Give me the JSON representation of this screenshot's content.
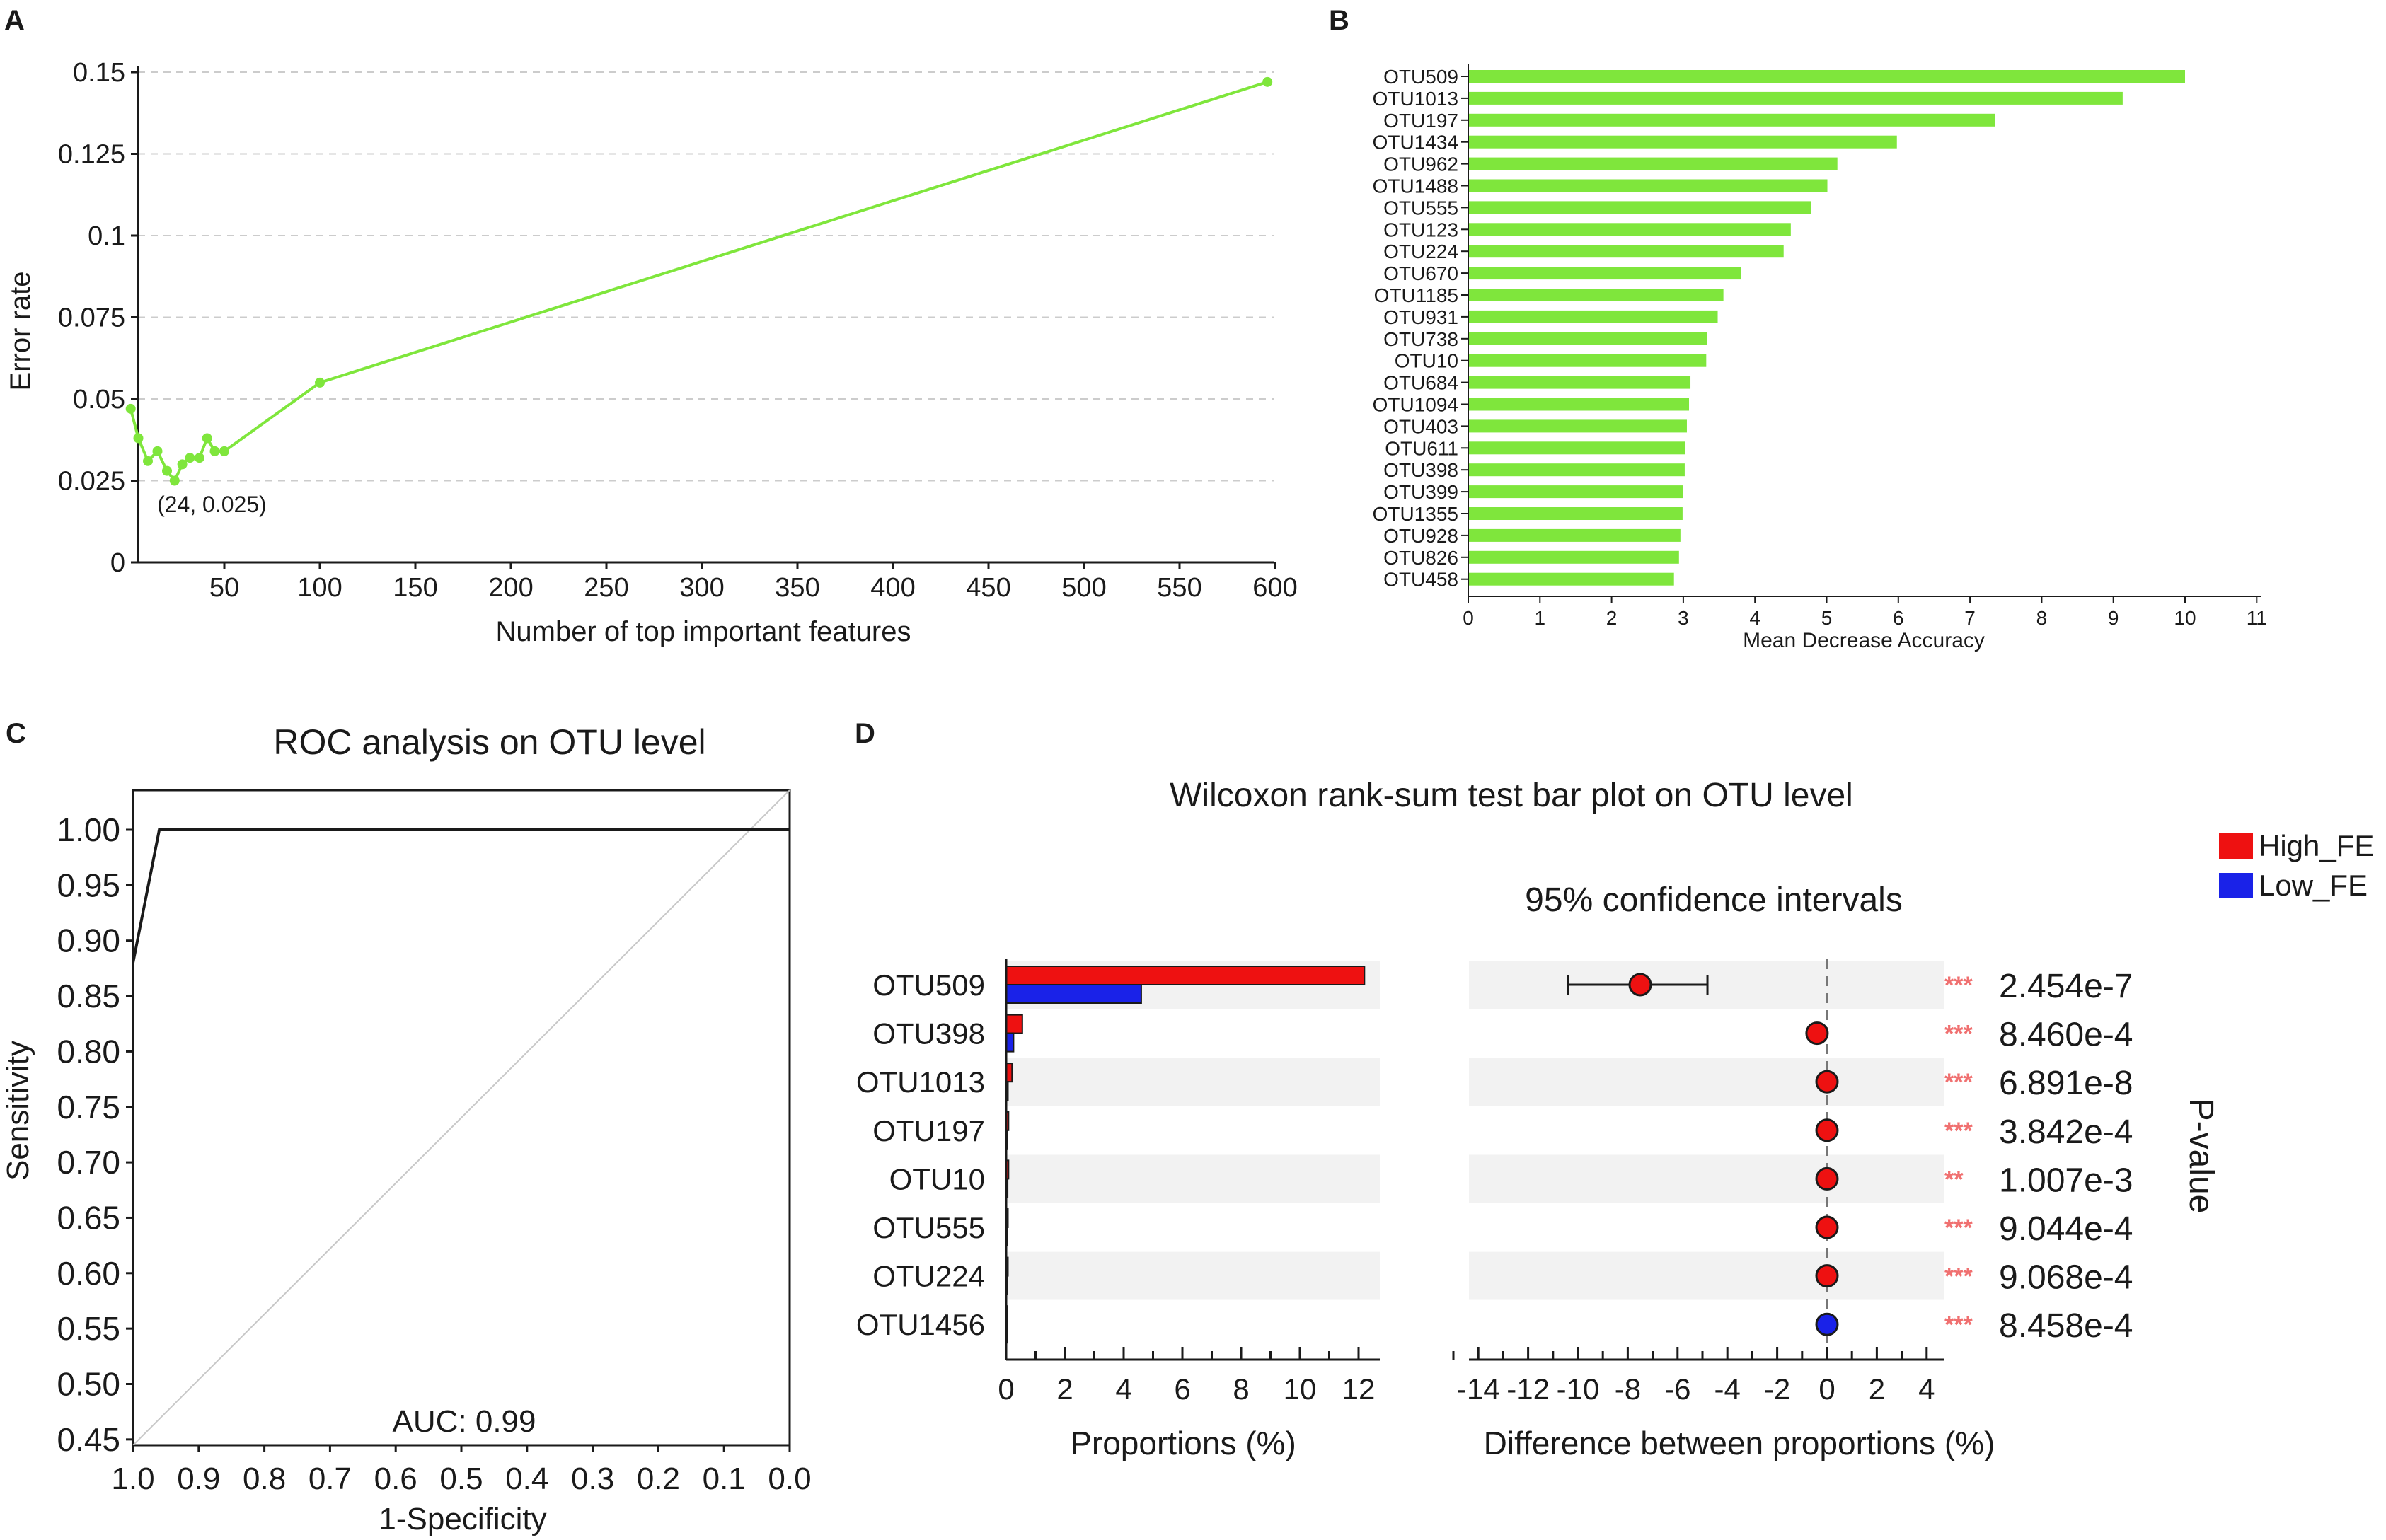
{
  "panels": {
    "A": {
      "label": "A"
    },
    "B": {
      "label": "B"
    },
    "C": {
      "label": "C"
    },
    "D": {
      "label": "D"
    }
  },
  "colors": {
    "green": "#7fe63c",
    "red": "#ee1111",
    "blue": "#1a22e8",
    "asterisk": "#f07070",
    "axis": "#1a1a1a",
    "grid": "#cccccc",
    "shade": "#f2f2f2",
    "diag": "#c8c8c8"
  },
  "chart_data": [
    {
      "id": "A",
      "type": "line",
      "xlabel": "Number of top important features",
      "ylabel": "Error rate",
      "xlim": [
        0,
        600
      ],
      "ylim": [
        0,
        0.15
      ],
      "xticks": [
        50,
        100,
        150,
        200,
        250,
        300,
        350,
        400,
        450,
        500,
        550,
        600
      ],
      "yticks": [
        0,
        0.025,
        0.05,
        0.075,
        0.1,
        0.125,
        0.15
      ],
      "yticklabels": [
        "0",
        "0.025",
        "0.05",
        "0.075",
        "0.1",
        "0.125",
        "0.15"
      ],
      "x": [
        1,
        5,
        10,
        15,
        20,
        24,
        28,
        32,
        37,
        41,
        45,
        50,
        100,
        596
      ],
      "y": [
        0.047,
        0.038,
        0.031,
        0.034,
        0.028,
        0.025,
        0.03,
        0.032,
        0.032,
        0.038,
        0.034,
        0.034,
        0.055,
        0.147
      ],
      "annotation": "(24, 0.025)",
      "grid": true
    },
    {
      "id": "B",
      "type": "bar",
      "orientation": "horizontal",
      "xlabel": "Mean Decrease Accuracy",
      "xlim": [
        0,
        11
      ],
      "xticks": [
        0,
        1,
        2,
        3,
        4,
        5,
        6,
        7,
        8,
        9,
        10,
        11
      ],
      "categories": [
        "OTU509",
        "OTU1013",
        "OTU197",
        "OTU1434",
        "OTU962",
        "OTU1488",
        "OTU555",
        "OTU123",
        "OTU224",
        "OTU670",
        "OTU1185",
        "OTU931",
        "OTU738",
        "OTU10",
        "OTU684",
        "OTU1094",
        "OTU403",
        "OTU611",
        "OTU398",
        "OTU399",
        "OTU1355",
        "OTU928",
        "OTU826",
        "OTU458"
      ],
      "values": [
        10.0,
        9.13,
        7.35,
        5.98,
        5.15,
        5.01,
        4.78,
        4.5,
        4.4,
        3.81,
        3.56,
        3.48,
        3.33,
        3.32,
        3.1,
        3.08,
        3.05,
        3.03,
        3.02,
        3.0,
        2.99,
        2.96,
        2.94,
        2.87
      ]
    },
    {
      "id": "C",
      "type": "line",
      "title": "ROC analysis on OTU level",
      "xlabel": "1-Specificity",
      "ylabel": "Sensitivity",
      "xlim": [
        1.0,
        0.0
      ],
      "ylim": [
        0.44,
        1.04
      ],
      "xticks": [
        "1.0",
        "0.9",
        "0.8",
        "0.7",
        "0.6",
        "0.5",
        "0.4",
        "0.3",
        "0.2",
        "0.1",
        "0.0"
      ],
      "yticks": [
        "0.45",
        "0.50",
        "0.55",
        "0.60",
        "0.65",
        "0.70",
        "0.75",
        "0.80",
        "0.85",
        "0.90",
        "0.95",
        "1.00"
      ],
      "curve": {
        "x": [
          1.0,
          0.96,
          0.0
        ],
        "y": [
          0.88,
          1.0,
          1.0
        ]
      },
      "annotation": "AUC: 0.99"
    },
    {
      "id": "D",
      "type": "bar",
      "title": "Wilcoxon rank-sum test bar plot on OTU level",
      "ci_title": "95% confidence intervals",
      "legend": [
        {
          "name": "High_FE",
          "color": "#ee1111"
        },
        {
          "name": "Low_FE",
          "color": "#1a22e8"
        }
      ],
      "categories": [
        "OTU509",
        "OTU398",
        "OTU1013",
        "OTU197",
        "OTU10",
        "OTU555",
        "OTU224",
        "OTU1456"
      ],
      "series": [
        {
          "name": "High_FE",
          "values": [
            12.2,
            0.55,
            0.2,
            0.08,
            0.08,
            0.06,
            0.06,
            0.02
          ]
        },
        {
          "name": "Low_FE",
          "values": [
            4.6,
            0.25,
            0.06,
            0.04,
            0.05,
            0.03,
            0.04,
            0.03
          ]
        }
      ],
      "prop_xlabel": "Proportions (%)",
      "prop_xlim": [
        0,
        12.8
      ],
      "prop_xticks": [
        0,
        2,
        4,
        6,
        8,
        10,
        12
      ],
      "diff_xlabel": "Difference between proportions (%)",
      "diff_xlim": [
        -15.2,
        4.8
      ],
      "diff_xticks": [
        -14,
        -12,
        -10,
        -8,
        -6,
        -4,
        -2,
        0,
        2,
        4
      ],
      "diff": [
        -7.5,
        -0.4,
        0.0,
        0.0,
        0.0,
        0.0,
        0.0,
        0.0
      ],
      "ci_low": [
        -10.4,
        -0.6,
        -0.1,
        -0.1,
        -0.1,
        -0.1,
        -0.1,
        -0.1
      ],
      "ci_high": [
        -4.8,
        -0.2,
        0.1,
        0.1,
        0.1,
        0.1,
        0.1,
        0.1
      ],
      "point_colors": [
        "#ee1111",
        "#ee1111",
        "#ee1111",
        "#ee1111",
        "#ee1111",
        "#ee1111",
        "#ee1111",
        "#1a22e8"
      ],
      "stars": [
        "***",
        "***",
        "***",
        "***",
        "**",
        "***",
        "***",
        "***"
      ],
      "pvalues": [
        "2.454e-7",
        "8.460e-4",
        "6.891e-8",
        "3.842e-4",
        "1.007e-3",
        "9.044e-4",
        "9.068e-4",
        "8.458e-4"
      ],
      "pvalue_label": "P-value"
    }
  ]
}
